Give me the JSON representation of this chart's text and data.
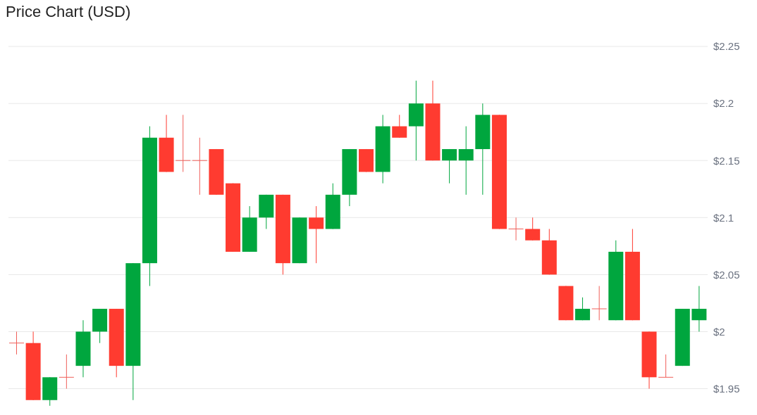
{
  "chart_data": {
    "type": "candlestick",
    "title": "Price Chart (USD)",
    "categories": [
      null,
      null,
      null,
      null,
      null,
      null,
      null,
      null,
      null,
      null,
      null,
      null,
      null,
      null,
      null,
      null,
      null,
      null,
      null,
      null,
      null,
      null,
      null,
      null,
      null,
      null,
      null,
      null,
      null,
      null,
      null,
      null,
      null,
      null,
      null,
      null,
      null,
      null,
      null,
      null,
      null,
      null
    ],
    "ohlc": [
      [
        1.99,
        2.0,
        1.98,
        1.99
      ],
      [
        1.99,
        2.0,
        1.94,
        1.94
      ],
      [
        1.94,
        1.96,
        1.935,
        1.96
      ],
      [
        1.96,
        1.98,
        1.95,
        1.96
      ],
      [
        1.97,
        2.01,
        1.96,
        2.0
      ],
      [
        2.0,
        2.02,
        1.99,
        2.02
      ],
      [
        2.02,
        2.02,
        1.96,
        1.97
      ],
      [
        1.97,
        2.06,
        1.94,
        2.06
      ],
      [
        2.06,
        2.18,
        2.04,
        2.17
      ],
      [
        2.17,
        2.19,
        2.14,
        2.14
      ],
      [
        2.15,
        2.19,
        2.14,
        2.15
      ],
      [
        2.15,
        2.17,
        2.12,
        2.15
      ],
      [
        2.16,
        2.16,
        2.12,
        2.12
      ],
      [
        2.13,
        2.13,
        2.07,
        2.07
      ],
      [
        2.07,
        2.11,
        2.07,
        2.1
      ],
      [
        2.1,
        2.12,
        2.09,
        2.12
      ],
      [
        2.12,
        2.12,
        2.05,
        2.06
      ],
      [
        2.06,
        2.1,
        2.06,
        2.1
      ],
      [
        2.1,
        2.11,
        2.06,
        2.09
      ],
      [
        2.09,
        2.13,
        2.09,
        2.12
      ],
      [
        2.12,
        2.16,
        2.11,
        2.16
      ],
      [
        2.16,
        2.16,
        2.14,
        2.14
      ],
      [
        2.14,
        2.19,
        2.13,
        2.18
      ],
      [
        2.18,
        2.19,
        2.17,
        2.17
      ],
      [
        2.18,
        2.22,
        2.15,
        2.2
      ],
      [
        2.2,
        2.22,
        2.15,
        2.15
      ],
      [
        2.15,
        2.16,
        2.13,
        2.16
      ],
      [
        2.15,
        2.18,
        2.12,
        2.16
      ],
      [
        2.16,
        2.2,
        2.12,
        2.19
      ],
      [
        2.19,
        2.19,
        2.09,
        2.09
      ],
      [
        2.09,
        2.1,
        2.08,
        2.09
      ],
      [
        2.09,
        2.1,
        2.08,
        2.08
      ],
      [
        2.08,
        2.09,
        2.05,
        2.05
      ],
      [
        2.04,
        2.04,
        2.01,
        2.01
      ],
      [
        2.01,
        2.03,
        2.01,
        2.02
      ],
      [
        2.02,
        2.04,
        2.01,
        2.02
      ],
      [
        2.01,
        2.08,
        2.01,
        2.07
      ],
      [
        2.07,
        2.09,
        2.01,
        2.01
      ],
      [
        2.0,
        2.0,
        1.95,
        1.96
      ],
      [
        1.96,
        1.98,
        1.96,
        1.96
      ],
      [
        1.97,
        2.02,
        1.97,
        2.02
      ],
      [
        2.01,
        2.04,
        2.0,
        2.02
      ]
    ],
    "colors": [
      "#f0605a",
      "#ff3b30",
      "#00a63e",
      "#f0605a",
      "#00a63e",
      "#00a63e",
      "#ff3b30",
      "#00a63e",
      "#00a63e",
      "#ff3b30",
      "#f0605a",
      "#f0605a",
      "#ff3b30",
      "#ff3b30",
      "#00a63e",
      "#00a63e",
      "#ff3b30",
      "#00a63e",
      "#ff3b30",
      "#00a63e",
      "#00a63e",
      "#ff3b30",
      "#00a63e",
      "#ff3b30",
      "#00a63e",
      "#ff3b30",
      "#00a63e",
      "#00a63e",
      "#00a63e",
      "#ff3b30",
      "#f0605a",
      "#ff3b30",
      "#ff3b30",
      "#ff3b30",
      "#00a63e",
      "#f0605a",
      "#00a63e",
      "#ff3b30",
      "#ff3b30",
      "#f0605a",
      "#00a63e",
      "#00a63e"
    ],
    "ylim": [
      1.93,
      2.25
    ],
    "yticks": [
      {
        "value": 1.95,
        "label": "$1.95"
      },
      {
        "value": 2,
        "label": "$2"
      },
      {
        "value": 2.05,
        "label": "$2.05"
      },
      {
        "value": 2.1,
        "label": "$2.1"
      },
      {
        "value": 2.15,
        "label": "$2.15"
      },
      {
        "value": 2.2,
        "label": "$2.2"
      },
      {
        "value": 2.25,
        "label": "$2.25"
      }
    ],
    "grid": "y",
    "tick_labels": "y"
  }
}
